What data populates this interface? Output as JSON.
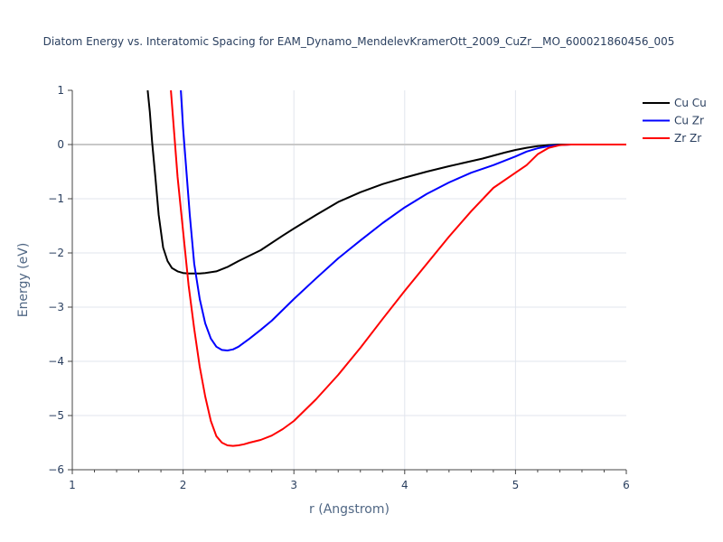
{
  "chart_data": {
    "type": "line",
    "title": "Diatom Energy vs. Interatomic Spacing for EAM_Dynamo_MendelevKramerOtt_2009_CuZr__MO_600021860456_005",
    "xlabel": "r (Angstrom)",
    "ylabel": "Energy (eV)",
    "xlim": [
      1,
      6
    ],
    "ylim": [
      -6,
      1
    ],
    "x_ticks": [
      "1",
      "2",
      "3",
      "4",
      "5",
      "6"
    ],
    "y_ticks": [
      "1",
      "0",
      "−1",
      "−2",
      "−3",
      "−4",
      "−5",
      "−6"
    ],
    "grid": true,
    "legend_position": "top-right",
    "series": [
      {
        "name": "Cu Cu",
        "color": "#000000",
        "x": [
          1.68,
          1.7,
          1.72,
          1.75,
          1.78,
          1.82,
          1.86,
          1.9,
          1.95,
          2.0,
          2.05,
          2.1,
          2.15,
          2.2,
          2.3,
          2.4,
          2.5,
          2.7,
          2.9,
          3.0,
          3.2,
          3.4,
          3.6,
          3.8,
          4.0,
          4.2,
          4.4,
          4.7,
          4.9,
          5.0,
          5.1,
          5.2,
          5.3,
          5.4,
          5.5,
          6.0
        ],
        "y": [
          1.0,
          0.6,
          0.05,
          -0.6,
          -1.3,
          -1.9,
          -2.15,
          -2.28,
          -2.34,
          -2.37,
          -2.38,
          -2.38,
          -2.38,
          -2.37,
          -2.34,
          -2.26,
          -2.15,
          -1.95,
          -1.68,
          -1.55,
          -1.3,
          -1.06,
          -0.88,
          -0.73,
          -0.61,
          -0.5,
          -0.4,
          -0.26,
          -0.15,
          -0.1,
          -0.06,
          -0.03,
          -0.01,
          0.0,
          0.0,
          0.0
        ]
      },
      {
        "name": "Cu Zr",
        "color": "#0000ff",
        "x": [
          1.98,
          2.0,
          2.03,
          2.06,
          2.1,
          2.15,
          2.2,
          2.25,
          2.3,
          2.35,
          2.4,
          2.45,
          2.5,
          2.6,
          2.7,
          2.8,
          3.0,
          3.2,
          3.4,
          3.6,
          3.8,
          4.0,
          4.2,
          4.4,
          4.6,
          4.8,
          5.0,
          5.1,
          5.2,
          5.3,
          5.4,
          5.5,
          6.0
        ],
        "y": [
          1.0,
          0.3,
          -0.5,
          -1.3,
          -2.2,
          -2.85,
          -3.3,
          -3.58,
          -3.73,
          -3.79,
          -3.8,
          -3.78,
          -3.73,
          -3.58,
          -3.42,
          -3.25,
          -2.85,
          -2.47,
          -2.1,
          -1.77,
          -1.45,
          -1.16,
          -0.91,
          -0.7,
          -0.52,
          -0.38,
          -0.22,
          -0.13,
          -0.07,
          -0.03,
          -0.01,
          0.0,
          0.0
        ]
      },
      {
        "name": "Zr Zr",
        "color": "#ff0000",
        "x": [
          1.89,
          1.92,
          1.95,
          2.0,
          2.05,
          2.1,
          2.15,
          2.2,
          2.25,
          2.3,
          2.35,
          2.4,
          2.45,
          2.5,
          2.55,
          2.6,
          2.7,
          2.8,
          2.9,
          3.0,
          3.2,
          3.4,
          3.6,
          3.8,
          4.0,
          4.2,
          4.4,
          4.6,
          4.8,
          5.0,
          5.1,
          5.2,
          5.3,
          5.4,
          5.5,
          6.0
        ],
        "y": [
          1.0,
          0.2,
          -0.6,
          -1.6,
          -2.6,
          -3.4,
          -4.1,
          -4.65,
          -5.1,
          -5.38,
          -5.5,
          -5.55,
          -5.56,
          -5.55,
          -5.53,
          -5.5,
          -5.45,
          -5.37,
          -5.25,
          -5.1,
          -4.7,
          -4.25,
          -3.75,
          -3.22,
          -2.7,
          -2.2,
          -1.7,
          -1.23,
          -0.8,
          -0.52,
          -0.38,
          -0.18,
          -0.06,
          -0.01,
          0.0,
          0.0
        ]
      }
    ]
  }
}
